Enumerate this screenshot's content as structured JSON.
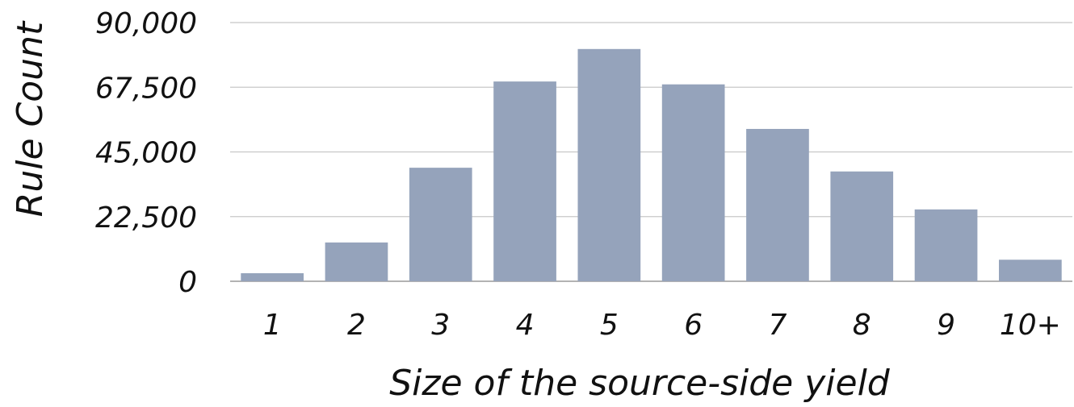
{
  "chart_data": {
    "type": "bar",
    "categories": [
      "1",
      "2",
      "3",
      "4",
      "5",
      "6",
      "7",
      "8",
      "9",
      "10+"
    ],
    "values": [
      2800,
      13500,
      39500,
      69500,
      80800,
      68500,
      53000,
      38200,
      25000,
      7500
    ],
    "xlabel": "Size of the source-side yield",
    "ylabel": "Rule Count",
    "ylim": [
      0,
      90000
    ],
    "yticks": [
      0,
      22500,
      45000,
      67500,
      90000
    ],
    "ytick_labels": [
      "0",
      "22,500",
      "45,000",
      "67,500",
      "90,000"
    ],
    "grid": true,
    "legend": "none",
    "bar_color": "#95a3bb"
  }
}
